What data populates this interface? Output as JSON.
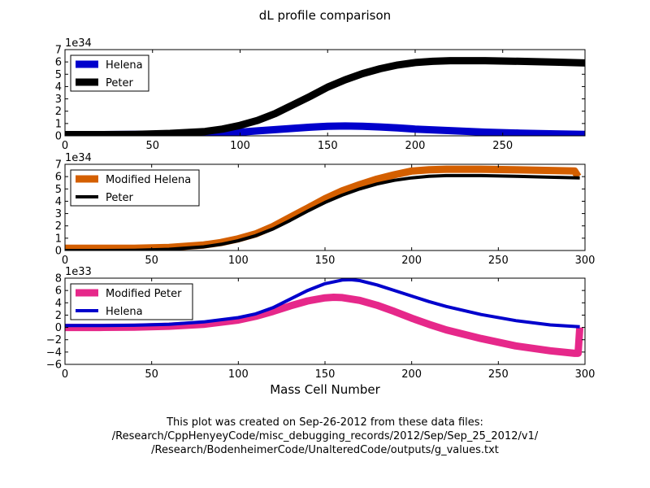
{
  "figure": {
    "title": "dL profile comparison",
    "xlabel": "Mass Cell Number",
    "footnote": [
      "This plot was created on Sep-26-2012 from these data files:",
      "/Research/CppHenyeyCode/misc_debugging_records/2012/Sep/Sep_25_2012/v1/",
      "/Research/BodenheimerCode/UnalteredCode/outputs/g_values.txt"
    ]
  },
  "chart_data": [
    {
      "type": "line",
      "multiplier": "1e34",
      "xlim": [
        0,
        297
      ],
      "ylim": [
        0,
        7
      ],
      "xticks": [
        0,
        50,
        100,
        150,
        200,
        250
      ],
      "yticks": [
        0,
        1,
        2,
        3,
        4,
        5,
        6,
        7
      ],
      "grid": false,
      "legend_position": "upper-left",
      "series": [
        {
          "name": "Helena",
          "color": "#0000cc",
          "linewidth": "thick",
          "x": [
            0,
            20,
            40,
            60,
            80,
            90,
            100,
            110,
            120,
            130,
            140,
            150,
            160,
            170,
            180,
            190,
            200,
            220,
            240,
            260,
            280,
            297
          ],
          "y": [
            0.1,
            0.1,
            0.12,
            0.15,
            0.2,
            0.25,
            0.3,
            0.4,
            0.5,
            0.6,
            0.7,
            0.78,
            0.8,
            0.78,
            0.72,
            0.65,
            0.55,
            0.42,
            0.3,
            0.22,
            0.16,
            0.12
          ]
        },
        {
          "name": "Peter",
          "color": "#000000",
          "linewidth": "thick",
          "x": [
            0,
            20,
            40,
            60,
            80,
            90,
            100,
            110,
            120,
            130,
            140,
            150,
            160,
            170,
            180,
            190,
            200,
            210,
            220,
            240,
            260,
            280,
            297
          ],
          "y": [
            0.1,
            0.1,
            0.12,
            0.2,
            0.35,
            0.55,
            0.85,
            1.25,
            1.8,
            2.5,
            3.2,
            3.95,
            4.55,
            5.05,
            5.45,
            5.75,
            5.95,
            6.05,
            6.1,
            6.1,
            6.05,
            5.98,
            5.92
          ]
        }
      ]
    },
    {
      "type": "line",
      "multiplier": "1e34",
      "xlim": [
        0,
        300
      ],
      "ylim": [
        0,
        7
      ],
      "xticks": [
        0,
        50,
        100,
        150,
        200,
        250,
        300
      ],
      "yticks": [
        0,
        1,
        2,
        3,
        4,
        5,
        6,
        7
      ],
      "grid": false,
      "legend_position": "upper-left",
      "series": [
        {
          "name": "Modified Helena",
          "color": "#d45f00",
          "linewidth": "thick",
          "x": [
            0,
            20,
            40,
            60,
            80,
            90,
            100,
            110,
            120,
            130,
            140,
            150,
            160,
            170,
            180,
            190,
            200,
            210,
            220,
            240,
            260,
            280,
            294,
            296
          ],
          "y": [
            0.18,
            0.18,
            0.18,
            0.25,
            0.45,
            0.65,
            0.95,
            1.35,
            1.95,
            2.7,
            3.45,
            4.2,
            4.85,
            5.35,
            5.8,
            6.15,
            6.45,
            6.55,
            6.6,
            6.6,
            6.55,
            6.5,
            6.45,
            6.0
          ]
        },
        {
          "name": "Peter",
          "color": "#000000",
          "linewidth": "medium",
          "x": [
            0,
            20,
            40,
            60,
            80,
            90,
            100,
            110,
            120,
            130,
            140,
            150,
            160,
            170,
            180,
            190,
            200,
            210,
            220,
            240,
            260,
            280,
            297
          ],
          "y": [
            0.0,
            0.0,
            0.02,
            0.1,
            0.3,
            0.5,
            0.8,
            1.2,
            1.75,
            2.45,
            3.2,
            3.9,
            4.5,
            5.0,
            5.4,
            5.7,
            5.9,
            6.02,
            6.08,
            6.08,
            6.02,
            5.95,
            5.9
          ]
        }
      ]
    },
    {
      "type": "line",
      "multiplier": "1e33",
      "xlim": [
        0,
        300
      ],
      "ylim": [
        -6,
        8
      ],
      "xticks": [
        0,
        50,
        100,
        150,
        200,
        250,
        300
      ],
      "yticks": [
        -6,
        -4,
        -2,
        0,
        2,
        4,
        6,
        8
      ],
      "ytick_labels": [
        "−6",
        "−4",
        "−2",
        "0",
        "2",
        "4",
        "6",
        "8"
      ],
      "grid": false,
      "legend_position": "upper-left",
      "series": [
        {
          "name": "Modified Peter",
          "color": "#e6288a",
          "linewidth": "thick",
          "x": [
            0,
            20,
            40,
            60,
            80,
            100,
            110,
            120,
            130,
            140,
            150,
            155,
            160,
            170,
            180,
            190,
            200,
            210,
            220,
            240,
            260,
            280,
            294,
            296,
            297
          ],
          "y": [
            0.0,
            0.0,
            0.05,
            0.2,
            0.5,
            1.2,
            1.8,
            2.6,
            3.5,
            4.3,
            4.8,
            4.9,
            4.85,
            4.4,
            3.6,
            2.6,
            1.5,
            0.5,
            -0.4,
            -1.8,
            -3.0,
            -3.8,
            -4.2,
            -4.2,
            0.0
          ]
        },
        {
          "name": "Helena",
          "color": "#0000cc",
          "linewidth": "medium",
          "x": [
            0,
            20,
            40,
            60,
            80,
            100,
            110,
            120,
            130,
            140,
            150,
            160,
            165,
            170,
            180,
            190,
            200,
            210,
            220,
            240,
            260,
            280,
            297
          ],
          "y": [
            0.3,
            0.3,
            0.35,
            0.5,
            0.9,
            1.6,
            2.2,
            3.2,
            4.6,
            6.0,
            7.1,
            7.7,
            7.75,
            7.6,
            6.9,
            6.0,
            5.1,
            4.2,
            3.4,
            2.1,
            1.1,
            0.4,
            0.1
          ]
        }
      ]
    }
  ]
}
